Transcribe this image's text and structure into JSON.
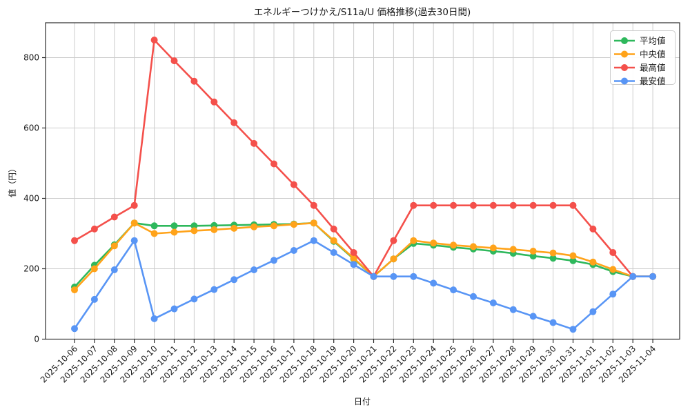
{
  "chart_data": {
    "type": "line",
    "title": "エネルギーつけかえ/S11a/U 価格推移(過去30日間)",
    "xlabel": "日付",
    "ylabel": "値（円）",
    "grid": true,
    "legend_position": "upper right",
    "ylim": [
      0,
      898
    ],
    "yticks": [
      0,
      200,
      400,
      600,
      800
    ],
    "x": [
      "2025-10-06",
      "2025-10-07",
      "2025-10-08",
      "2025-10-09",
      "2025-10-10",
      "2025-10-11",
      "2025-10-12",
      "2025-10-13",
      "2025-10-14",
      "2025-10-15",
      "2025-10-16",
      "2025-10-17",
      "2025-10-18",
      "2025-10-19",
      "2025-10-20",
      "2025-10-21",
      "2025-10-22",
      "2025-10-23",
      "2025-10-24",
      "2025-10-25",
      "2025-10-26",
      "2025-10-27",
      "2025-10-28",
      "2025-10-29",
      "2025-10-30",
      "2025-10-31",
      "2025-11-01",
      "2025-11-02",
      "2025-11-03",
      "2025-11-04"
    ],
    "series": [
      {
        "key": "average",
        "name": "平均値",
        "color": "#2eb85c",
        "values": [
          148,
          210,
          268,
          330,
          322,
          322,
          322,
          323,
          324,
          325,
          326,
          327,
          330,
          278,
          228,
          178,
          228,
          272,
          267,
          261,
          256,
          250,
          244,
          236,
          230,
          223,
          212,
          192,
          178,
          178
        ]
      },
      {
        "key": "median",
        "name": "中央値",
        "color": "#ffa31a",
        "values": [
          140,
          200,
          265,
          330,
          300,
          304,
          308,
          311,
          315,
          319,
          322,
          326,
          330,
          280,
          230,
          178,
          228,
          280,
          273,
          267,
          263,
          259,
          255,
          250,
          245,
          237,
          219,
          198,
          178,
          178
        ]
      },
      {
        "key": "max",
        "name": "最高値",
        "color": "#f4504b",
        "values": [
          280,
          313,
          347,
          380,
          850,
          791,
          733,
          674,
          615,
          556,
          498,
          439,
          380,
          313,
          246,
          178,
          280,
          380,
          380,
          380,
          380,
          380,
          380,
          380,
          380,
          380,
          313,
          246,
          178,
          178
        ]
      },
      {
        "key": "min",
        "name": "最安値",
        "color": "#5895f5",
        "values": [
          30,
          113,
          197,
          280,
          58,
          86,
          114,
          141,
          169,
          197,
          224,
          252,
          280,
          246,
          212,
          178,
          178,
          178,
          159,
          140,
          121,
          103,
          84,
          65,
          47,
          28,
          78,
          128,
          178,
          178
        ]
      }
    ]
  },
  "colors": {
    "grid": "#cccccc",
    "spine": "#2b2b2b",
    "text": "#1a1a1a",
    "background": "#ffffff",
    "legend_border": "#cccccc"
  }
}
